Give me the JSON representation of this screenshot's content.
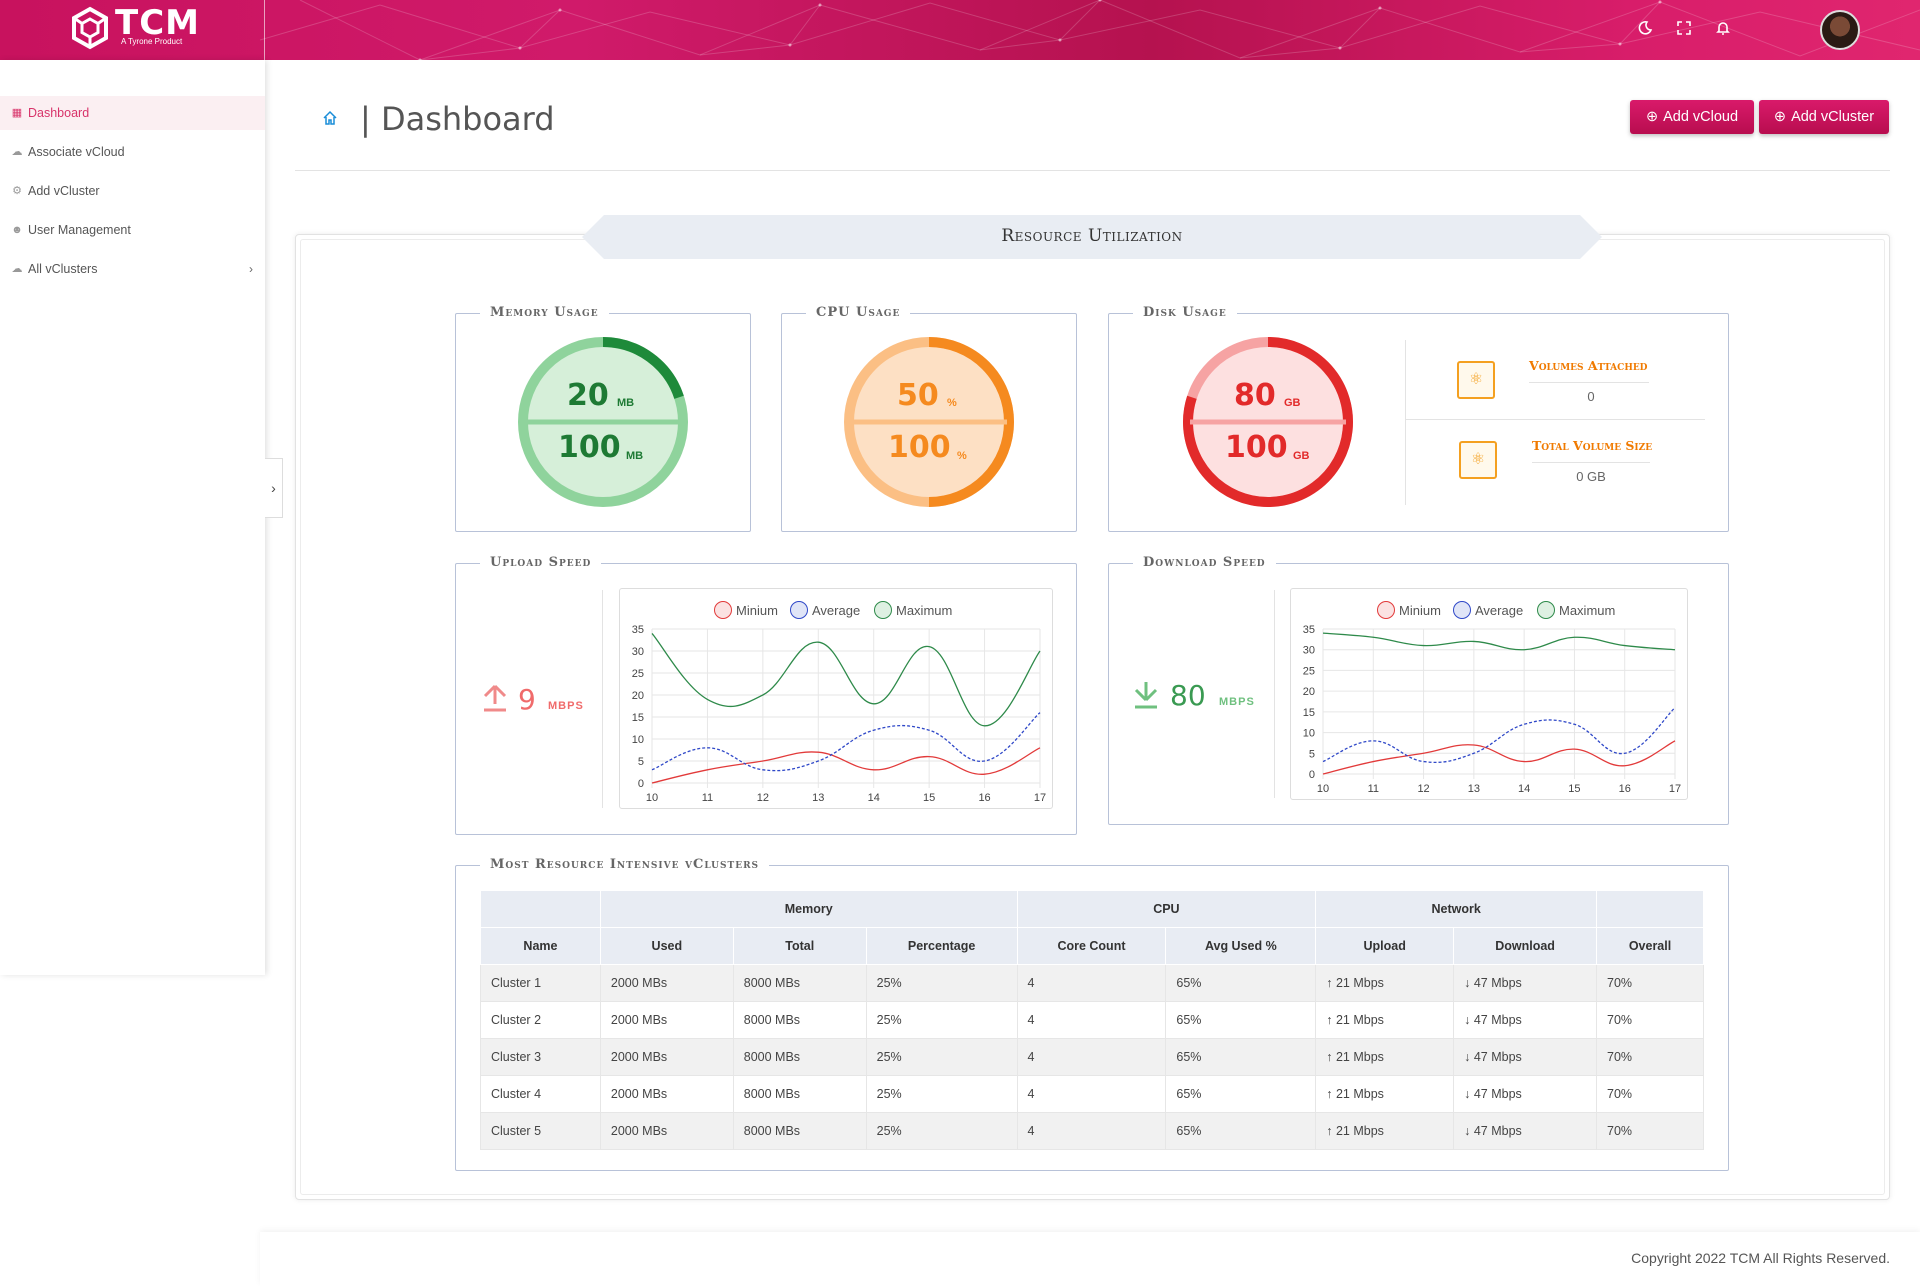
{
  "app": {
    "logo_text": "TCM",
    "logo_sub": "A Tyrone Product",
    "accent_color": "#d01a6a"
  },
  "header": {
    "icons": [
      "theme-icon",
      "fullscreen-icon",
      "bell-icon"
    ]
  },
  "sidebar": {
    "items": [
      {
        "label": "Dashboard",
        "icon": "dashboard-icon",
        "active": true
      },
      {
        "label": "Associate vCloud",
        "icon": "cloud-icon",
        "active": false
      },
      {
        "label": "Add vCluster",
        "icon": "gear-icon",
        "active": false
      },
      {
        "label": "User Management",
        "icon": "users-icon",
        "active": false
      },
      {
        "label": "All vClusters",
        "icon": "cloud-icon",
        "active": false
      }
    ]
  },
  "page": {
    "title": "| Dashboard",
    "add_vcloud": "Add vCloud",
    "add_vcluster": "Add vCluster"
  },
  "resource": {
    "banner": "Resource Utilization",
    "memory": {
      "legend": "Memory Usage",
      "used": "20",
      "total": "100",
      "unit": "MB",
      "fraction": 0.2,
      "color": "#1e8a3a"
    },
    "cpu": {
      "legend": "CPU Usage",
      "used": "50",
      "total": "100",
      "unit": "%",
      "fraction": 0.5,
      "color": "#f58a1f"
    },
    "disk": {
      "legend": "Disk Usage",
      "used": "80",
      "total": "100",
      "unit": "GB",
      "fraction": 0.8,
      "color": "#e22a2a"
    },
    "volumes_attached_label": "Volumes Attached",
    "volumes_attached_value": "0",
    "total_volume_size_label": "Total Volume Size",
    "total_volume_size_value": "0 GB"
  },
  "upload": {
    "legend": "Upload Speed",
    "value": "9",
    "unit": "MBPS"
  },
  "download": {
    "legend": "Download Speed",
    "value": "80",
    "unit": "MBPS"
  },
  "chart_data": [
    {
      "type": "line",
      "name": "upload",
      "x": [
        10,
        11,
        12,
        13,
        14,
        15,
        16,
        17
      ],
      "series": [
        {
          "name": "Minium",
          "color": "#e23a3a",
          "values": [
            0,
            3,
            5,
            7,
            3,
            6,
            2,
            8
          ]
        },
        {
          "name": "Average",
          "color": "#2f48c8",
          "values": [
            3,
            8,
            3,
            5,
            12,
            12,
            5,
            16
          ]
        },
        {
          "name": "Maximum",
          "color": "#2e8a4a",
          "values": [
            34,
            19,
            20,
            32,
            18,
            31,
            13,
            30
          ]
        }
      ],
      "yticks": [
        "0",
        "5",
        "10",
        "15",
        "20",
        "25",
        "30",
        "35"
      ],
      "xticks": [
        "10",
        "11",
        "12",
        "13",
        "14",
        "15",
        "16",
        "17"
      ],
      "ylim": [
        0,
        35
      ]
    },
    {
      "type": "line",
      "name": "download",
      "x": [
        10,
        11,
        12,
        13,
        14,
        15,
        16,
        17
      ],
      "series": [
        {
          "name": "Minium",
          "color": "#e23a3a",
          "values": [
            0,
            3,
            5,
            7,
            3,
            6,
            2,
            8
          ]
        },
        {
          "name": "Average",
          "color": "#2f48c8",
          "values": [
            3,
            8,
            3,
            5,
            12,
            12,
            5,
            16
          ]
        },
        {
          "name": "Maximum",
          "color": "#2e8a4a",
          "values": [
            34,
            33,
            31,
            32,
            30,
            33,
            31,
            30
          ]
        }
      ],
      "yticks": [
        "0",
        "5",
        "10",
        "15",
        "20",
        "25",
        "30",
        "35"
      ],
      "xticks": [
        "10",
        "11",
        "12",
        "13",
        "14",
        "15",
        "16",
        "17"
      ],
      "ylim": [
        0,
        35
      ]
    }
  ],
  "table": {
    "legend": "Most Resource Intensive vClusters",
    "group_headers": {
      "memory": "Memory",
      "cpu": "CPU",
      "network": "Network"
    },
    "headers": {
      "name": "Name",
      "used": "Used",
      "total": "Total",
      "percentage": "Percentage",
      "cores": "Core Count",
      "avg": "Avg Used %",
      "upload": "Upload",
      "download": "Download",
      "overall": "Overall"
    },
    "rows": [
      {
        "name": "Cluster 1",
        "used": "2000 MBs",
        "total": "8000 MBs",
        "pct": "25%",
        "cores": "4",
        "avg": "65%",
        "up": "21 Mbps",
        "down": "47 Mbps",
        "overall": "70%"
      },
      {
        "name": "Cluster 2",
        "used": "2000 MBs",
        "total": "8000 MBs",
        "pct": "25%",
        "cores": "4",
        "avg": "65%",
        "up": "21 Mbps",
        "down": "47 Mbps",
        "overall": "70%"
      },
      {
        "name": "Cluster 3",
        "used": "2000 MBs",
        "total": "8000 MBs",
        "pct": "25%",
        "cores": "4",
        "avg": "65%",
        "up": "21 Mbps",
        "down": "47 Mbps",
        "overall": "70%"
      },
      {
        "name": "Cluster 4",
        "used": "2000 MBs",
        "total": "8000 MBs",
        "pct": "25%",
        "cores": "4",
        "avg": "65%",
        "up": "21 Mbps",
        "down": "47 Mbps",
        "overall": "70%"
      },
      {
        "name": "Cluster 5",
        "used": "2000 MBs",
        "total": "8000 MBs",
        "pct": "25%",
        "cores": "4",
        "avg": "65%",
        "up": "21 Mbps",
        "down": "47 Mbps",
        "overall": "70%"
      }
    ]
  },
  "footer": {
    "text": "Copyright 2022 TCM All Rights Reserved."
  }
}
